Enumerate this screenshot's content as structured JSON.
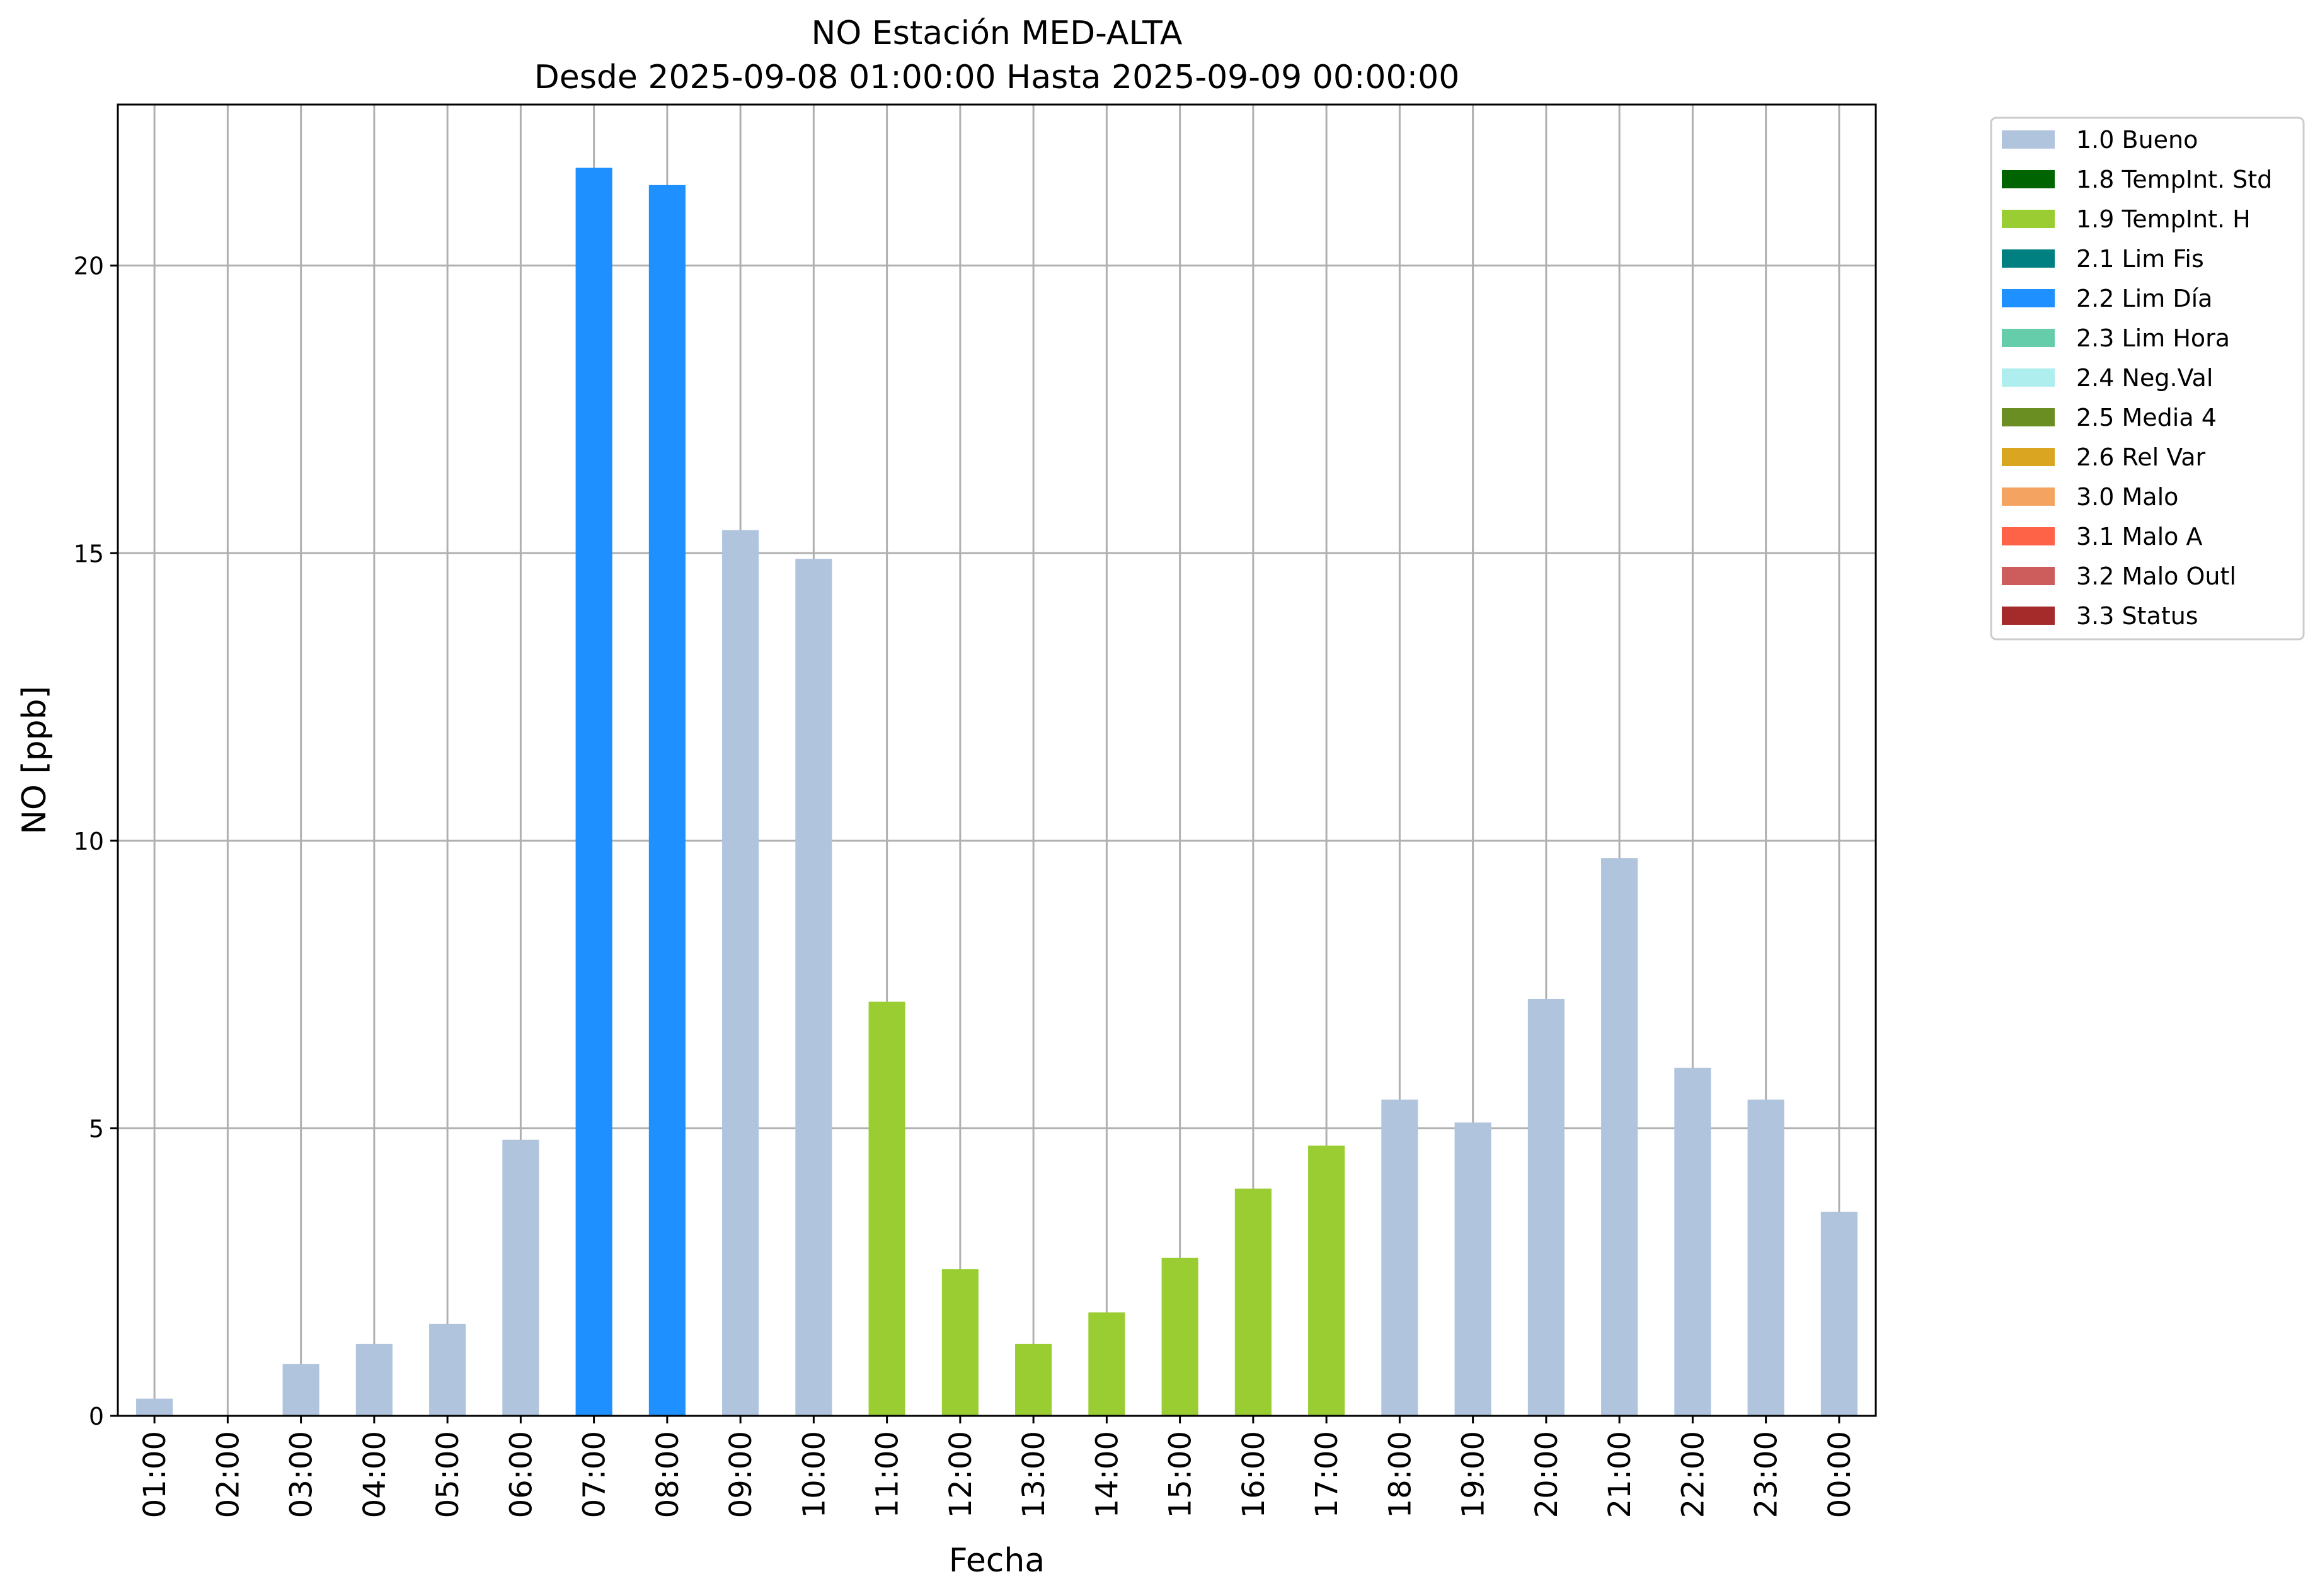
{
  "chart_data": {
    "type": "bar",
    "title": "NO Estación MED-ALTA",
    "subtitle": "Desde 2025-09-08 01:00:00 Hasta 2025-09-09 00:00:00",
    "xlabel": "Fecha",
    "ylabel": "NO [ppb]",
    "ylim": [
      0,
      22.8
    ],
    "yticks": [
      0,
      5,
      10,
      15,
      20
    ],
    "grid": true,
    "legend_position": "outside-top-right",
    "categories": [
      "01:00",
      "02:00",
      "03:00",
      "04:00",
      "05:00",
      "06:00",
      "07:00",
      "08:00",
      "09:00",
      "10:00",
      "11:00",
      "12:00",
      "13:00",
      "14:00",
      "15:00",
      "16:00",
      "17:00",
      "18:00",
      "19:00",
      "20:00",
      "21:00",
      "22:00",
      "23:00",
      "00:00"
    ],
    "values": [
      0.3,
      0.0,
      0.9,
      1.25,
      1.6,
      4.8,
      21.7,
      21.4,
      15.4,
      14.9,
      7.2,
      2.55,
      1.25,
      1.8,
      2.75,
      3.95,
      4.7,
      5.5,
      5.1,
      7.25,
      9.7,
      6.05,
      5.5,
      3.55
    ],
    "flags": [
      "1.0",
      "1.0",
      "1.0",
      "1.0",
      "1.0",
      "1.0",
      "2.2",
      "2.2",
      "1.0",
      "1.0",
      "1.9",
      "1.9",
      "1.9",
      "1.9",
      "1.9",
      "1.9",
      "1.9",
      "1.0",
      "1.0",
      "1.0",
      "1.0",
      "1.0",
      "1.0",
      "1.0"
    ],
    "legend": [
      {
        "code": "1.0",
        "label": "1.0 Bueno",
        "color": "#b0c4de"
      },
      {
        "code": "1.8",
        "label": "1.8 TempInt. Std",
        "color": "#006400"
      },
      {
        "code": "1.9",
        "label": "1.9 TempInt. H",
        "color": "#9acd32"
      },
      {
        "code": "2.1",
        "label": "2.1 Lim Fis",
        "color": "#008080"
      },
      {
        "code": "2.2",
        "label": "2.2 Lim Día",
        "color": "#1e90ff"
      },
      {
        "code": "2.3",
        "label": "2.3 Lim Hora",
        "color": "#66cdaa"
      },
      {
        "code": "2.4",
        "label": "2.4 Neg.Val",
        "color": "#afeeee"
      },
      {
        "code": "2.5",
        "label": "2.5 Media 4",
        "color": "#6b8e23"
      },
      {
        "code": "2.6",
        "label": "2.6 Rel Var",
        "color": "#daa520"
      },
      {
        "code": "3.0",
        "label": "3.0 Malo",
        "color": "#f4a460"
      },
      {
        "code": "3.1",
        "label": "3.1 Malo A",
        "color": "#ff6347"
      },
      {
        "code": "3.2",
        "label": "3.2 Malo Outl",
        "color": "#cd5c5c"
      },
      {
        "code": "3.3",
        "label": "3.3 Status",
        "color": "#a52a2a"
      }
    ]
  }
}
